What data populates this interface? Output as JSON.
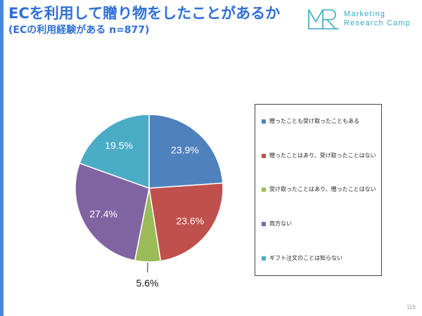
{
  "slide": {
    "title": "ECを利用して贈り物をしたことがあるか",
    "subtitle": "(ECの利用経験がある n=877)",
    "page_number": "119",
    "accent_color": "#2f6fd6"
  },
  "logo": {
    "mark": "MR",
    "line1": "Marketing",
    "line2": "Research Camp",
    "color": "#33a8c4"
  },
  "chart_data": {
    "type": "pie",
    "categories": [
      "贈ったことも受け取ったこともある",
      "贈ったことはあり、受け取ったことはない",
      "受け取ったことはあり、贈ったことはない",
      "両方ない",
      "ギフト注文のことは知らない"
    ],
    "values": [
      23.9,
      23.6,
      5.6,
      27.4,
      19.5
    ],
    "data_labels": [
      "23.9%",
      "23.6%",
      "5.6%",
      "27.4%",
      "19.5%"
    ],
    "colors": [
      "#4f81bd",
      "#c0504d",
      "#9bbb59",
      "#8064a2",
      "#4bacc6"
    ],
    "legend": "right"
  }
}
